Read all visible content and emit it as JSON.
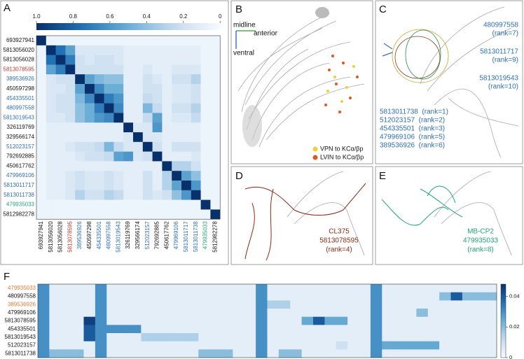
{
  "panel_a": {
    "letter": "A",
    "colorbar": {
      "lim": [
        0,
        1
      ],
      "reversed": true,
      "ticks": [
        {
          "value": 1,
          "label": "1.0"
        },
        0.8,
        0.6,
        0.4,
        0.2,
        0
      ]
    },
    "labels": [
      "693927941",
      "5813056020",
      "5813056028",
      "5813078595",
      "389536926",
      "450597298",
      "454335501",
      "480997558",
      "5813019543",
      "326119769",
      "329566174",
      "512023157",
      "792692885",
      "450617762",
      "479969106",
      "5813011717",
      "5813011738",
      "479935033",
      "5812982278"
    ],
    "label_colors": [
      "#111",
      "#111",
      "#111",
      "#c0392b",
      "#2e6fb5",
      "#111",
      "#2e6fb5",
      "#2e6fb5",
      "#2e6fb5",
      "#111",
      "#111",
      "#2e6fb5",
      "#111",
      "#111",
      "#2e6fb5",
      "#2e6fb5",
      "#2e6fb5",
      "#27a37a",
      "#111"
    ],
    "matrix": [
      [
        1,
        0.05,
        0.05,
        0.05,
        0.05,
        0.05,
        0.05,
        0.05,
        0.05,
        0.05,
        0.05,
        0.05,
        0.05,
        0.05,
        0.05,
        0.05,
        0.05,
        0.05,
        0.05
      ],
      [
        0.05,
        1,
        0.75,
        0.55,
        0.15,
        0.15,
        0.15,
        0.15,
        0.15,
        0.1,
        0.1,
        0.1,
        0.1,
        0.1,
        0.1,
        0.1,
        0.1,
        0.05,
        0.05
      ],
      [
        0.05,
        0.75,
        1,
        0.7,
        0.2,
        0.15,
        0.2,
        0.2,
        0.15,
        0.1,
        0.1,
        0.1,
        0.1,
        0.1,
        0.1,
        0.1,
        0.1,
        0.05,
        0.05
      ],
      [
        0.05,
        0.55,
        0.7,
        1,
        0.2,
        0.2,
        0.2,
        0.2,
        0.2,
        0.1,
        0.1,
        0.15,
        0.1,
        0.1,
        0.15,
        0.15,
        0.15,
        0.05,
        0.05
      ],
      [
        0.05,
        0.15,
        0.2,
        0.2,
        1,
        0.55,
        0.45,
        0.4,
        0.4,
        0.1,
        0.1,
        0.2,
        0.15,
        0.1,
        0.2,
        0.2,
        0.3,
        0.05,
        0.05
      ],
      [
        0.05,
        0.15,
        0.15,
        0.2,
        0.55,
        1,
        0.65,
        0.5,
        0.5,
        0.1,
        0.1,
        0.2,
        0.2,
        0.1,
        0.15,
        0.15,
        0.2,
        0.05,
        0.05
      ],
      [
        0.05,
        0.15,
        0.2,
        0.2,
        0.45,
        0.65,
        1,
        0.7,
        0.6,
        0.1,
        0.1,
        0.25,
        0.2,
        0.1,
        0.15,
        0.15,
        0.2,
        0.05,
        0.05
      ],
      [
        0.05,
        0.15,
        0.2,
        0.2,
        0.4,
        0.5,
        0.7,
        1,
        0.65,
        0.1,
        0.1,
        0.45,
        0.25,
        0.1,
        0.2,
        0.2,
        0.3,
        0.05,
        0.05
      ],
      [
        0.05,
        0.15,
        0.15,
        0.2,
        0.4,
        0.5,
        0.6,
        0.65,
        1,
        0.1,
        0.1,
        0.25,
        0.55,
        0.1,
        0.15,
        0.15,
        0.25,
        0.05,
        0.05
      ],
      [
        0.05,
        0.1,
        0.1,
        0.1,
        0.1,
        0.1,
        0.1,
        0.1,
        0.1,
        1,
        0.15,
        0.15,
        0.6,
        0.1,
        0.1,
        0.1,
        0.1,
        0.05,
        0.05
      ],
      [
        0.05,
        0.1,
        0.1,
        0.1,
        0.1,
        0.1,
        0.1,
        0.1,
        0.1,
        0.15,
        1,
        0.15,
        0.15,
        0.1,
        0.1,
        0.1,
        0.1,
        0.05,
        0.05
      ],
      [
        0.05,
        0.1,
        0.1,
        0.15,
        0.2,
        0.2,
        0.25,
        0.45,
        0.25,
        0.15,
        0.15,
        1,
        0.2,
        0.1,
        0.2,
        0.2,
        0.2,
        0.05,
        0.05
      ],
      [
        0.05,
        0.1,
        0.1,
        0.1,
        0.15,
        0.2,
        0.2,
        0.25,
        0.55,
        0.6,
        0.15,
        0.2,
        1,
        0.1,
        0.1,
        0.1,
        0.15,
        0.05,
        0.05
      ],
      [
        0.05,
        0.1,
        0.1,
        0.1,
        0.1,
        0.1,
        0.1,
        0.1,
        0.1,
        0.1,
        0.1,
        0.1,
        0.1,
        1,
        0.3,
        0.3,
        0.2,
        0.05,
        0.05
      ],
      [
        0.05,
        0.1,
        0.1,
        0.15,
        0.2,
        0.15,
        0.15,
        0.2,
        0.15,
        0.1,
        0.1,
        0.2,
        0.1,
        0.3,
        1,
        0.55,
        0.4,
        0.05,
        0.05
      ],
      [
        0.05,
        0.1,
        0.1,
        0.15,
        0.2,
        0.15,
        0.15,
        0.2,
        0.15,
        0.1,
        0.1,
        0.2,
        0.1,
        0.3,
        0.55,
        1,
        0.6,
        0.05,
        0.05
      ],
      [
        0.05,
        0.1,
        0.1,
        0.15,
        0.3,
        0.2,
        0.2,
        0.3,
        0.25,
        0.1,
        0.1,
        0.2,
        0.15,
        0.2,
        0.4,
        0.6,
        1,
        0.05,
        0.05
      ],
      [
        0.05,
        0.05,
        0.05,
        0.05,
        0.05,
        0.05,
        0.05,
        0.05,
        0.05,
        0.05,
        0.05,
        0.05,
        0.05,
        0.05,
        0.05,
        0.05,
        0.05,
        1,
        0.05
      ],
      [
        0.05,
        0.05,
        0.05,
        0.05,
        0.05,
        0.05,
        0.05,
        0.05,
        0.05,
        0.05,
        0.05,
        0.05,
        0.05,
        0.05,
        0.05,
        0.05,
        0.05,
        0.05,
        1
      ]
    ]
  },
  "panel_b": {
    "letter": "B",
    "axes": [
      "midline",
      "anterior",
      "ventral"
    ],
    "legend": [
      {
        "name": "VPN to KCα/βp",
        "color": "#e8d23a"
      },
      {
        "name": "LVIN to KCα/βp",
        "color": "#e0562a"
      }
    ]
  },
  "panel_c": {
    "letter": "C",
    "right_labels": [
      [
        "480997558",
        "(rank=7)"
      ],
      [
        "5813011717",
        "(rank=9)"
      ],
      [
        "5813019543",
        "(rank=10)"
      ]
    ],
    "list": [
      "5813011738  (rank=1)",
      "512023157  (rank=2)",
      "454335501  (rank=3)",
      "479969106  (rank=5)",
      "389536926  (rank=6)"
    ]
  },
  "panel_d": {
    "letter": "D",
    "lines": [
      "CL375",
      "5813078595",
      "(rank=4)"
    ]
  },
  "panel_e": {
    "letter": "E",
    "lines": [
      "MB-CP2",
      "479935033",
      "(rank=8)"
    ]
  },
  "panel_f": {
    "letter": "F",
    "colorbar": {
      "lim": [
        0,
        0.048
      ],
      "ticks": [
        0,
        0.02,
        0.04
      ]
    },
    "labels": [
      "479935033",
      "480997558",
      "389536926",
      "479969106",
      "5813078595",
      "454335501",
      "5813019543",
      "512023157",
      "5813011738"
    ],
    "label_colors": [
      "#e07a3a",
      "#111",
      "#e07a3a",
      "#111",
      "#111",
      "#111",
      "#111",
      "#111",
      "#111"
    ],
    "matrix": [
      [
        0.03,
        0.005,
        0.005,
        0.005,
        0.005,
        0.03,
        0.005,
        0.005,
        0.005,
        0.005,
        0.005,
        0.005,
        0.005,
        0.005,
        0.005,
        0.005,
        0.005,
        0.005,
        0.005,
        0.03,
        0.005,
        0.005,
        0.005,
        0.005,
        0.005,
        0.005,
        0.005,
        0.005,
        0.005,
        0.03,
        0.005,
        0.005,
        0.005,
        0.005,
        0.005,
        0.005,
        0.005,
        0.005,
        0.005,
        0.005
      ],
      [
        0.03,
        0.005,
        0.005,
        0.005,
        0.005,
        0.03,
        0.005,
        0.005,
        0.005,
        0.005,
        0.005,
        0.005,
        0.005,
        0.005,
        0.005,
        0.005,
        0.005,
        0.005,
        0.005,
        0.03,
        0.005,
        0.005,
        0.005,
        0.005,
        0.005,
        0.005,
        0.005,
        0.005,
        0.005,
        0.03,
        0.005,
        0.005,
        0.005,
        0.005,
        0.005,
        0.02,
        0.04,
        0.02,
        0.02,
        0.02
      ],
      [
        0.03,
        0.005,
        0.005,
        0.005,
        0.005,
        0.03,
        0.005,
        0.005,
        0.005,
        0.005,
        0.005,
        0.005,
        0.005,
        0.005,
        0.005,
        0.005,
        0.005,
        0.005,
        0.005,
        0.03,
        0.015,
        0.015,
        0.005,
        0.005,
        0.005,
        0.005,
        0.005,
        0.005,
        0.005,
        0.03,
        0.005,
        0.005,
        0.005,
        0.005,
        0.005,
        0.005,
        0.005,
        0.005,
        0.005,
        0.005
      ],
      [
        0.03,
        0.005,
        0.005,
        0.005,
        0.005,
        0.03,
        0.005,
        0.005,
        0.005,
        0.005,
        0.005,
        0.005,
        0.005,
        0.005,
        0.005,
        0.005,
        0.005,
        0.005,
        0.005,
        0.03,
        0.005,
        0.005,
        0.005,
        0.005,
        0.005,
        0.005,
        0.005,
        0.005,
        0.005,
        0.03,
        0.005,
        0.005,
        0.005,
        0.02,
        0.005,
        0.005,
        0.005,
        0.005,
        0.005,
        0.005
      ],
      [
        0.03,
        0.005,
        0.005,
        0.005,
        0.045,
        0.03,
        0.005,
        0.005,
        0.005,
        0.005,
        0.005,
        0.005,
        0.005,
        0.005,
        0.005,
        0.005,
        0.005,
        0.005,
        0.005,
        0.03,
        0.005,
        0.005,
        0.005,
        0.025,
        0.04,
        0.025,
        0.025,
        0.005,
        0.005,
        0.03,
        0.005,
        0.005,
        0.005,
        0.005,
        0.005,
        0.005,
        0.005,
        0.005,
        0.005,
        0.005
      ],
      [
        0.03,
        0.005,
        0.005,
        0.005,
        0.04,
        0.03,
        0.03,
        0.03,
        0.03,
        0.005,
        0.005,
        0.005,
        0.005,
        0.005,
        0.005,
        0.005,
        0.005,
        0.005,
        0.005,
        0.03,
        0.005,
        0.005,
        0.005,
        0.005,
        0.005,
        0.005,
        0.005,
        0.005,
        0.005,
        0.03,
        0.005,
        0.005,
        0.005,
        0.005,
        0.005,
        0.005,
        0.005,
        0.005,
        0.005,
        0.005
      ],
      [
        0.03,
        0.005,
        0.005,
        0.005,
        0.04,
        0.03,
        0.005,
        0.005,
        0.005,
        0.015,
        0.015,
        0.015,
        0.015,
        0.015,
        0.005,
        0.005,
        0.005,
        0.005,
        0.005,
        0.03,
        0.005,
        0.005,
        0.005,
        0.005,
        0.005,
        0.005,
        0.005,
        0.005,
        0.005,
        0.03,
        0.005,
        0.005,
        0.005,
        0.005,
        0.005,
        0.005,
        0.005,
        0.005,
        0.005,
        0.005
      ],
      [
        0.03,
        0.005,
        0.005,
        0.005,
        0.005,
        0.03,
        0.005,
        0.005,
        0.005,
        0.005,
        0.005,
        0.005,
        0.005,
        0.005,
        0.005,
        0.005,
        0.005,
        0.005,
        0.005,
        0.03,
        0.005,
        0.005,
        0.005,
        0.005,
        0.005,
        0.005,
        0.01,
        0.005,
        0.005,
        0.03,
        0.025,
        0.025,
        0.025,
        0.025,
        0.025,
        0.005,
        0.005,
        0.005,
        0.005,
        0.005
      ],
      [
        0.03,
        0.02,
        0.02,
        0.02,
        0.005,
        0.03,
        0.005,
        0.005,
        0.005,
        0.005,
        0.005,
        0.005,
        0.005,
        0.005,
        0.02,
        0.02,
        0.02,
        0.005,
        0.005,
        0.03,
        0.005,
        0.02,
        0.02,
        0.005,
        0.005,
        0.005,
        0.005,
        0.005,
        0.005,
        0.03,
        0.005,
        0.005,
        0.005,
        0.005,
        0.005,
        0.005,
        0.005,
        0.005,
        0.005,
        0.005
      ]
    ]
  }
}
